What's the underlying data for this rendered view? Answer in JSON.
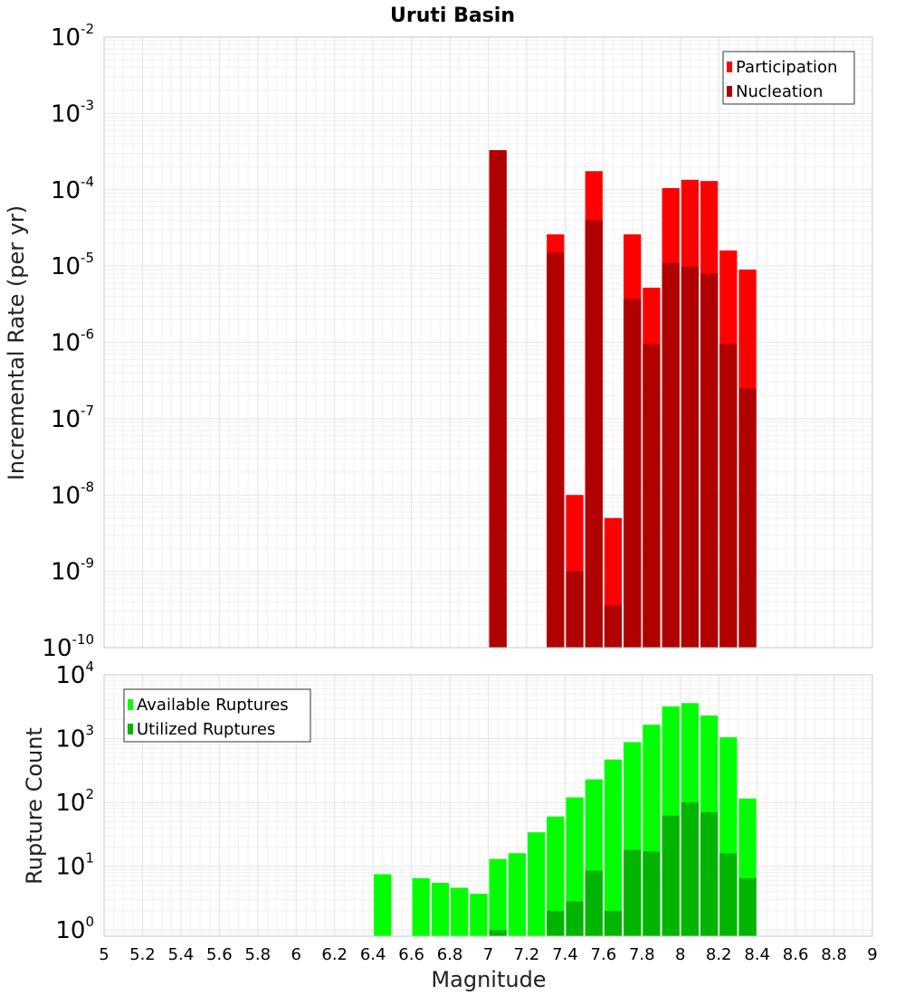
{
  "chart_data": [
    {
      "type": "bar",
      "title": "Uruti Basin",
      "xlabel": "",
      "ylabel": "Incremental Rate (per yr)",
      "yscale": "log",
      "ylim": [
        1e-10,
        0.01
      ],
      "xlim": [
        5,
        9
      ],
      "grid": true,
      "legend_position": "top-right",
      "x": [
        7.05,
        7.35,
        7.45,
        7.55,
        7.65,
        7.75,
        7.85,
        7.95,
        8.05,
        8.15,
        8.25,
        8.35
      ],
      "series": [
        {
          "name": "Participation",
          "color": "#ff0000",
          "values": [
            0.00033,
            2.6e-05,
            1e-08,
            0.000175,
            5e-09,
            2.6e-05,
            5.2e-06,
            0.000105,
            0.000135,
            0.00013,
            1.6e-05,
            9e-06
          ]
        },
        {
          "name": "Nucleation",
          "color": "#b00000",
          "values": [
            0.00033,
            1.5e-05,
            1e-09,
            4e-05,
            3.6e-10,
            3.7e-06,
            9.5e-07,
            1.1e-05,
            9.8e-06,
            8e-06,
            9.5e-07,
            2.5e-07
          ]
        }
      ],
      "y_ticks": [
        {
          "base": "10",
          "exp": "-10"
        },
        {
          "base": "10",
          "exp": "-9"
        },
        {
          "base": "10",
          "exp": "-8"
        },
        {
          "base": "10",
          "exp": "-7"
        },
        {
          "base": "10",
          "exp": "-6"
        },
        {
          "base": "10",
          "exp": "-5"
        },
        {
          "base": "10",
          "exp": "-4"
        },
        {
          "base": "10",
          "exp": "-3"
        },
        {
          "base": "10",
          "exp": "-2"
        }
      ]
    },
    {
      "type": "bar",
      "title": "",
      "xlabel": "Magnitude",
      "ylabel": "Rupture Count",
      "yscale": "log",
      "ylim": [
        0.8,
        10000
      ],
      "xlim": [
        5,
        9
      ],
      "grid": true,
      "legend_position": "top-left",
      "x": [
        6.45,
        6.65,
        6.75,
        6.85,
        6.95,
        7.05,
        7.15,
        7.25,
        7.35,
        7.45,
        7.55,
        7.65,
        7.75,
        7.85,
        7.95,
        8.05,
        8.15,
        8.25,
        8.35
      ],
      "series": [
        {
          "name": "Available Ruptures",
          "color": "#00ff00",
          "values": [
            7.5,
            6.5,
            5.5,
            4.6,
            3.7,
            13,
            16,
            34,
            60,
            120,
            230,
            470,
            880,
            1650,
            3200,
            3600,
            2300,
            1050,
            115
          ]
        },
        {
          "name": "Utilized Ruptures",
          "color": "#00b400",
          "values": [
            0,
            0,
            0,
            0,
            0,
            1,
            0,
            0,
            2,
            2.8,
            8.5,
            2,
            18,
            17,
            62,
            100,
            70,
            16,
            6.5
          ]
        }
      ],
      "y_ticks": [
        {
          "base": "10",
          "exp": "0"
        },
        {
          "base": "10",
          "exp": "1"
        },
        {
          "base": "10",
          "exp": "2"
        },
        {
          "base": "10",
          "exp": "3"
        },
        {
          "base": "10",
          "exp": "4"
        }
      ],
      "x_ticks": [
        "5",
        "5.2",
        "5.4",
        "5.6",
        "5.8",
        "6",
        "6.2",
        "6.4",
        "6.6",
        "6.8",
        "7",
        "7.2",
        "7.4",
        "7.6",
        "7.8",
        "8",
        "8.2",
        "8.4",
        "8.6",
        "8.8",
        "9"
      ]
    }
  ]
}
